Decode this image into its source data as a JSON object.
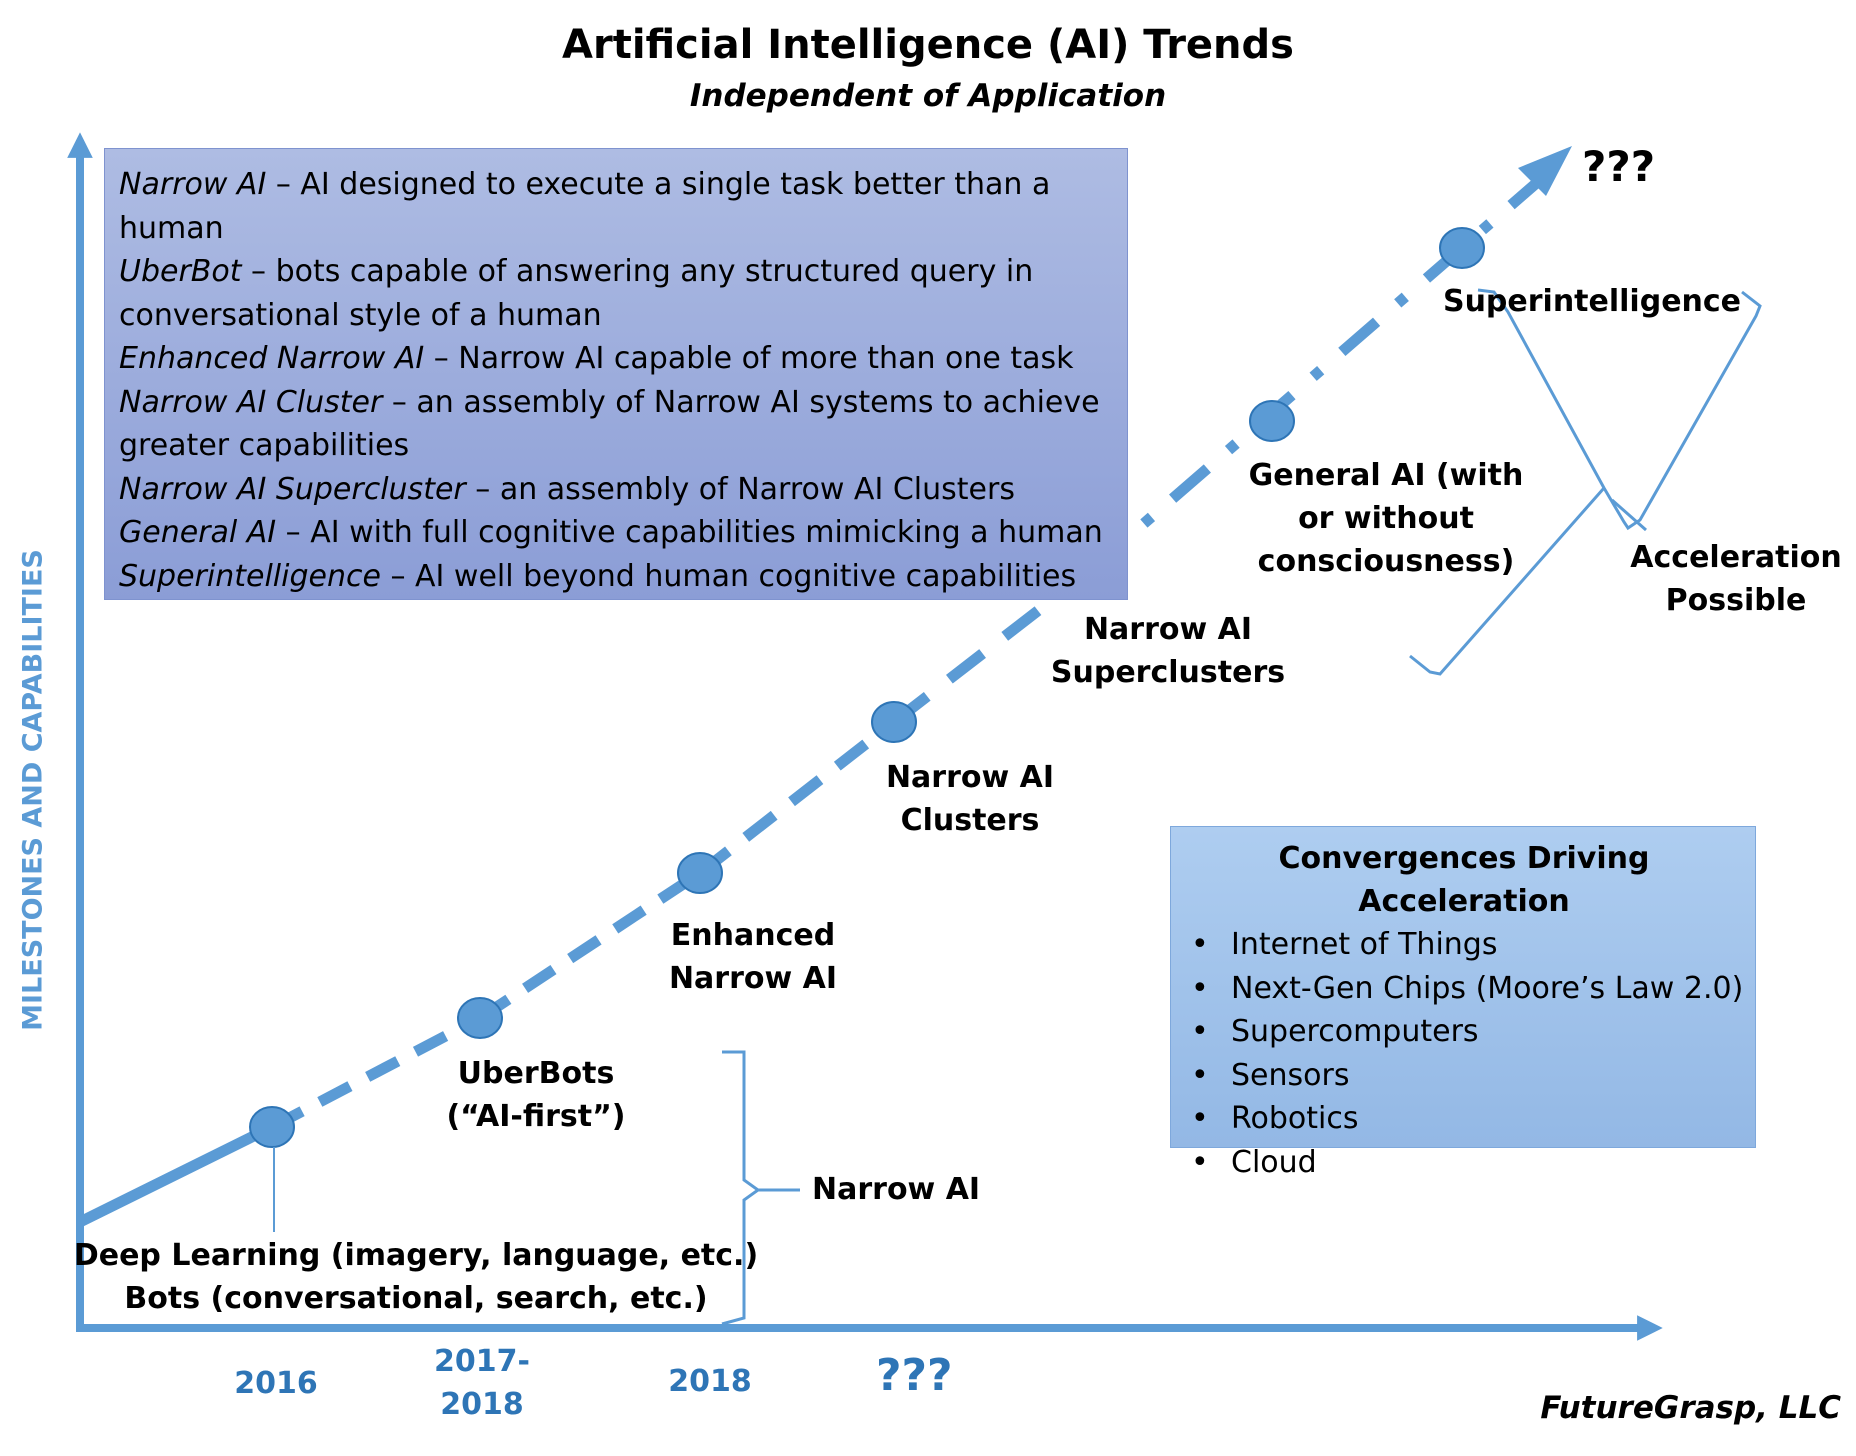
{
  "title": "Artificial Intelligence (AI) Trends",
  "subtitle": "Independent of Application",
  "y_axis_label": "MILESTONES AND CAPABILITIES",
  "definitions": [
    {
      "term": "Narrow AI",
      "text": " – AI designed to execute a single task better than a human"
    },
    {
      "term": "UberBot",
      "text": " – bots capable of answering any structured query in conversational style of a human"
    },
    {
      "term": "Enhanced Narrow AI",
      "text": " – Narrow AI capable of more than one task"
    },
    {
      "term": "Narrow AI Cluster",
      "text": " – an assembly of Narrow AI systems to achieve greater capabilities"
    },
    {
      "term": "Narrow AI Supercluster",
      "text": " – an assembly of Narrow AI Clusters"
    },
    {
      "term": "General AI",
      "text": " – AI with full cognitive capabilities mimicking a human"
    },
    {
      "term": "Superintelligence",
      "text": " – AI well beyond human cognitive capabilities"
    }
  ],
  "milestones": {
    "deep_learning": "Deep Learning (imagery, language, etc.)",
    "bots": "Bots (conversational, search, etc.)",
    "uberbots_line1": "UberBots",
    "uberbots_line2": "(“AI-first”)",
    "enhanced_line1": "Enhanced",
    "enhanced_line2": "Narrow AI",
    "clusters_line1": "Narrow AI",
    "clusters_line2": "Clusters",
    "superclusters_line1": "Narrow AI",
    "superclusters_line2": "Superclusters",
    "general_line1": "General AI (with",
    "general_line2": "or without",
    "general_line3": "consciousness)",
    "superintelligence": "Superintelligence",
    "future": "???"
  },
  "brackets": {
    "narrow_ai": "Narrow AI",
    "acceleration_line1": "Acceleration",
    "acceleration_line2": "Possible"
  },
  "convergences": {
    "title": "Convergences Driving Acceleration",
    "items": [
      "Internet of Things",
      "Next-Gen Chips (Moore’s Law 2.0)",
      "Supercomputers",
      "Sensors",
      "Robotics",
      "Cloud"
    ]
  },
  "x_axis": {
    "y2016": "2016",
    "y2017_line1": "2017-",
    "y2017_line2": "2018",
    "y2018": "2018",
    "future": "???"
  },
  "footer": "FutureGrasp, LLC",
  "colors": {
    "axis": "#5b9bd5",
    "node": "#5b9bd5",
    "node_stroke": "#2e75b6",
    "year_text": "#2e75b6",
    "definition_box": "#9fb0df",
    "convergence_box": "#a3c4ec"
  }
}
